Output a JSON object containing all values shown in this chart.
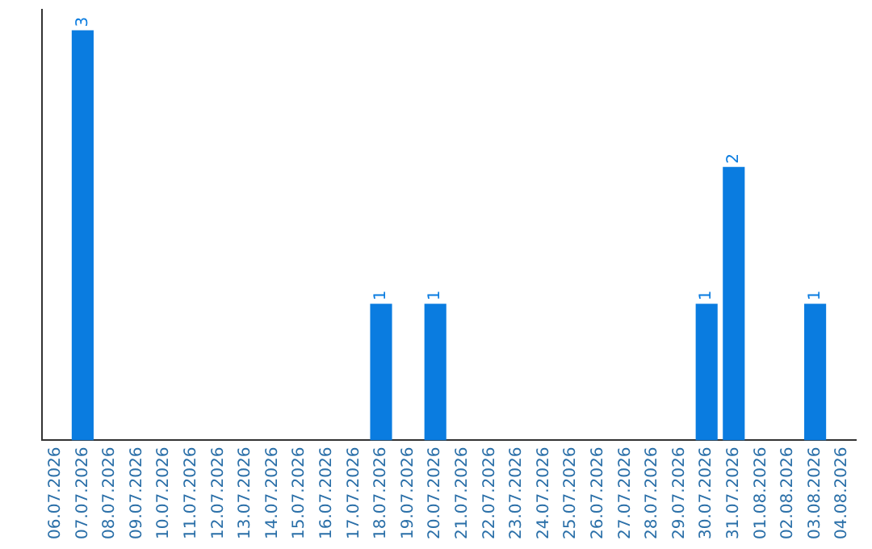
{
  "chart_data": {
    "type": "bar",
    "categories": [
      "06.07.2026",
      "07.07.2026",
      "08.07.2026",
      "09.07.2026",
      "10.07.2026",
      "11.07.2026",
      "12.07.2026",
      "13.07.2026",
      "14.07.2026",
      "15.07.2026",
      "16.07.2026",
      "17.07.2026",
      "18.07.2026",
      "19.07.2026",
      "20.07.2026",
      "21.07.2026",
      "22.07.2026",
      "23.07.2026",
      "24.07.2026",
      "25.07.2026",
      "26.07.2026",
      "27.07.2026",
      "28.07.2026",
      "29.07.2026",
      "30.07.2026",
      "31.07.2026",
      "01.08.2026",
      "02.08.2026",
      "03.08.2026",
      "04.08.2026"
    ],
    "values": [
      0,
      3,
      0,
      0,
      0,
      0,
      0,
      0,
      0,
      0,
      0,
      0,
      1,
      0,
      1,
      0,
      0,
      0,
      0,
      0,
      0,
      0,
      0,
      0,
      1,
      2,
      0,
      0,
      1,
      0
    ],
    "value_labels": [
      null,
      "3",
      null,
      null,
      null,
      null,
      null,
      null,
      null,
      null,
      null,
      null,
      "1",
      null,
      "1",
      null,
      null,
      null,
      null,
      null,
      null,
      null,
      null,
      null,
      "1",
      "2",
      null,
      null,
      "1",
      null
    ],
    "color": "#0a7ce0",
    "grid": false,
    "legend": false,
    "tick_labels": "x"
  }
}
